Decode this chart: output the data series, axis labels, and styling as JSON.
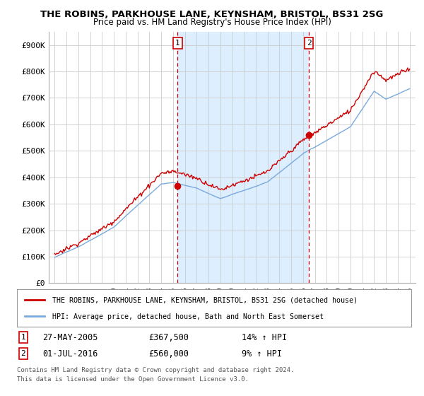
{
  "title": "THE ROBINS, PARKHOUSE LANE, KEYNSHAM, BRISTOL, BS31 2SG",
  "subtitle": "Price paid vs. HM Land Registry's House Price Index (HPI)",
  "ylim": [
    0,
    950000
  ],
  "yticks": [
    0,
    100000,
    200000,
    300000,
    400000,
    500000,
    600000,
    700000,
    800000,
    900000
  ],
  "ytick_labels": [
    "£0",
    "£100K",
    "£200K",
    "£300K",
    "£400K",
    "£500K",
    "£600K",
    "£700K",
    "£800K",
    "£900K"
  ],
  "xlim_start": 1994.5,
  "xlim_end": 2025.5,
  "marker1_x": 2005.4,
  "marker1_y": 367500,
  "marker1_label": "27-MAY-2005",
  "marker1_price": "£367,500",
  "marker1_hpi": "14% ↑ HPI",
  "marker2_x": 2016.5,
  "marker2_y": 560000,
  "marker2_label": "01-JUL-2016",
  "marker2_price": "£560,000",
  "marker2_hpi": "9% ↑ HPI",
  "red_line_color": "#cc0000",
  "blue_line_color": "#7aaadd",
  "shade_color": "#ddeeff",
  "grid_color": "#cccccc",
  "background_color": "#ffffff",
  "marker_box_color": "#cc0000",
  "legend_label_red": "THE ROBINS, PARKHOUSE LANE, KEYNSHAM, BRISTOL, BS31 2SG (detached house)",
  "legend_label_blue": "HPI: Average price, detached house, Bath and North East Somerset",
  "footer1": "Contains HM Land Registry data © Crown copyright and database right 2024.",
  "footer2": "This data is licensed under the Open Government Licence v3.0."
}
